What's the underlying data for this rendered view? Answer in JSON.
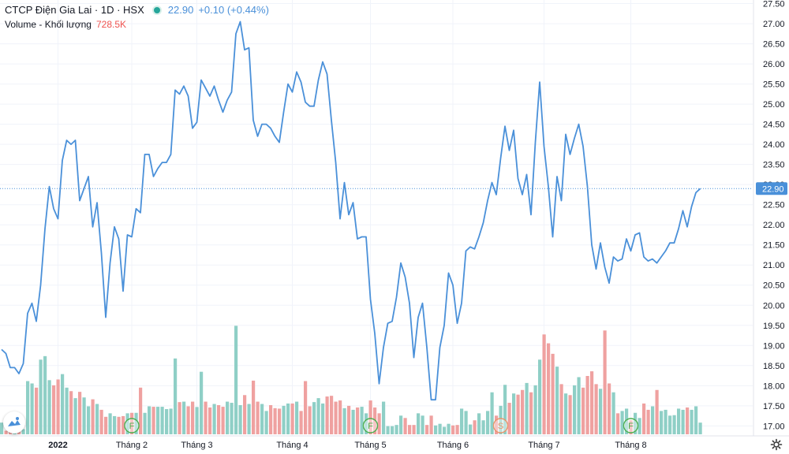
{
  "legend": {
    "symbol": "CTCP Điện Gia Lai · 1D · HSX",
    "last": "22.90",
    "change": "+0.10 (+0.44%)",
    "volume_label": "Volume - Khối lượng",
    "volume_value": "728.5K"
  },
  "colors": {
    "line": "#4a90d9",
    "volume_up": "#8fcfc6",
    "volume_down": "#efa1a0",
    "grid": "#f0f3fa",
    "axis_text": "#131722",
    "price_tag_bg": "#4a90d9",
    "event_marker": "#4caf50"
  },
  "icons": {
    "settings": "gear-icon",
    "logo": "tradingview-logo-icon"
  },
  "chart_data": {
    "type": "line",
    "ylim": [
      16.85,
      27.55
    ],
    "yticks": [
      "17.00",
      "17.50",
      "18.00",
      "18.50",
      "19.00",
      "19.50",
      "20.00",
      "20.50",
      "21.00",
      "21.50",
      "22.00",
      "22.50",
      "23.00",
      "23.50",
      "24.00",
      "24.50",
      "25.00",
      "25.50",
      "26.00",
      "26.50",
      "27.00",
      "27.50"
    ],
    "last_price_label": "22.90",
    "x_labels": [
      {
        "label": "2022",
        "index": 13
      },
      {
        "label": "Tháng 2",
        "index": 30
      },
      {
        "label": "Tháng 3",
        "index": 45
      },
      {
        "label": "Tháng 4",
        "index": 67
      },
      {
        "label": "Tháng 5",
        "index": 85
      },
      {
        "label": "Tháng 6",
        "index": 104
      },
      {
        "label": "Tháng 7",
        "index": 125
      },
      {
        "label": "Tháng 8",
        "index": 145
      }
    ],
    "event_markers": [
      {
        "label": "F",
        "index": 30
      },
      {
        "label": "F",
        "index": 85
      },
      {
        "label": "S",
        "index": 115
      },
      {
        "label": "F",
        "index": 145
      }
    ],
    "series": [
      {
        "values": [
          18.9,
          18.8,
          18.45,
          18.45,
          18.3,
          18.55,
          19.8,
          20.05,
          19.6,
          20.5,
          21.9,
          22.95,
          22.4,
          22.15,
          23.6,
          24.1,
          24.0,
          24.1,
          22.6,
          22.9,
          23.2,
          21.95,
          22.55,
          21.3,
          19.7,
          21.05,
          21.95,
          21.65,
          20.35,
          21.75,
          21.7,
          22.4,
          22.3,
          23.75,
          23.75,
          23.2,
          23.4,
          23.55,
          23.55,
          23.75,
          25.35,
          25.25,
          25.45,
          25.2,
          24.4,
          24.55,
          25.6,
          25.4,
          25.2,
          25.45,
          25.1,
          24.8,
          25.1,
          25.3,
          26.75,
          27.05,
          26.35,
          26.4,
          24.6,
          24.2,
          24.5,
          24.5,
          24.4,
          24.2,
          24.05,
          24.8,
          25.5,
          25.3,
          25.8,
          25.55,
          25.05,
          24.95,
          24.95,
          25.6,
          26.05,
          25.75,
          24.6,
          23.55,
          22.15,
          23.05,
          22.25,
          22.55,
          21.65,
          21.7,
          21.7,
          20.15,
          19.3,
          18.05,
          18.95,
          19.55,
          19.6,
          20.2,
          21.05,
          20.7,
          20.05,
          18.7,
          19.7,
          20.05,
          18.95,
          17.65,
          17.65,
          18.95,
          19.5,
          20.8,
          20.5,
          19.55,
          20.05,
          21.35,
          21.45,
          21.4,
          21.7,
          22.05,
          22.6,
          23.05,
          22.75,
          23.65,
          24.45,
          23.85,
          24.35,
          23.15,
          22.75,
          23.25,
          22.25,
          24.05,
          25.55,
          23.95,
          22.95,
          21.7,
          23.2,
          22.6,
          24.25,
          23.75,
          24.15,
          24.5,
          23.95,
          22.95,
          21.5,
          20.9,
          21.55,
          20.95,
          20.55,
          21.2,
          21.1,
          21.15,
          21.65,
          21.35,
          21.75,
          21.8,
          21.2,
          21.1,
          21.15,
          21.05,
          21.2,
          21.35,
          21.55,
          21.55,
          21.9,
          22.35,
          21.95,
          22.45,
          22.8,
          22.9
        ]
      },
      {
        "name": "Volume - Khối lượng",
        "values": [
          50,
          15,
          10,
          12,
          15,
          22,
          228,
          218,
          200,
          320,
          335,
          232,
          210,
          235,
          258,
          200,
          185,
          155,
          182,
          158,
          120,
          150,
          130,
          105,
          75,
          90,
          78,
          75,
          78,
          90,
          92,
          92,
          200,
          92,
          120,
          118,
          118,
          118,
          108,
          110,
          325,
          138,
          140,
          120,
          140,
          117,
          268,
          140,
          115,
          130,
          125,
          118,
          140,
          135,
          465,
          125,
          168,
          130,
          230,
          140,
          130,
          100,
          125,
          112,
          110,
          122,
          132,
          132,
          140,
          100,
          228,
          120,
          138,
          155,
          132,
          162,
          165,
          140,
          145,
          112,
          122,
          105,
          115,
          118,
          90,
          145,
          115,
          90,
          140,
          35,
          35,
          40,
          80,
          70,
          40,
          40,
          90,
          80,
          40,
          80,
          38,
          45,
          32,
          45,
          38,
          40,
          110,
          100,
          42,
          60,
          90,
          60,
          100,
          180,
          80,
          122,
          212,
          135,
          175,
          170,
          190,
          220,
          180,
          210,
          320,
          428,
          390,
          345,
          290,
          215,
          175,
          168,
          210,
          245,
          200,
          250,
          270,
          215,
          195,
          445,
          218,
          180,
          90,
          100,
          110,
          60,
          92,
          70,
          132,
          105,
          120,
          190,
          100,
          105,
          80,
          82,
          110,
          105,
          115,
          105,
          120,
          50
        ]
      }
    ]
  }
}
